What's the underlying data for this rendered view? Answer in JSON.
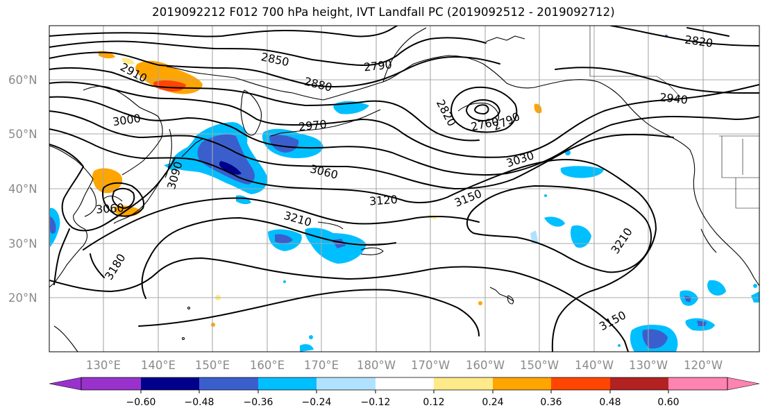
{
  "title": "2019092212 F012 700 hPa height, IVT Landfall PC (2019092512 - 2019092712)",
  "colors": {
    "neg060": "#9932cc",
    "neg048": "#00008b",
    "neg036": "#3a5fcd",
    "neg024": "#00bfff",
    "neg012": "#b0e2ff",
    "zero": "#ffffff",
    "pos012": "#ffea8a",
    "pos024": "#ffa500",
    "pos036": "#ff4500",
    "pos048": "#b22222",
    "pos060": "#ff83b0"
  },
  "lat_labels": [
    "60°N",
    "50°N",
    "40°N",
    "30°N",
    "20°N"
  ],
  "lon_labels": [
    "130°E",
    "140°E",
    "150°E",
    "160°E",
    "170°E",
    "180°W",
    "170°W",
    "160°W",
    "150°W",
    "140°W",
    "130°W",
    "120°W"
  ],
  "contour_labels": [
    "2820",
    "2850",
    "2790",
    "2880",
    "2910",
    "2820",
    "2940",
    "2760",
    "2790",
    "3000",
    "2970",
    "3030",
    "3060",
    "3090",
    "3060",
    "3120",
    "3150",
    "3210",
    "3210",
    "3180",
    "3150"
  ],
  "colorbar": {
    "tick_labels": [
      "−0.60",
      "−0.48",
      "−0.36",
      "−0.24",
      "−0.12",
      "0.12",
      "0.24",
      "0.36",
      "0.48",
      "0.60"
    ],
    "bins": [
      "neg060",
      "neg048",
      "neg036",
      "neg024",
      "neg012",
      "zero",
      "pos012",
      "pos024",
      "pos036",
      "pos048",
      "pos060"
    ]
  }
}
